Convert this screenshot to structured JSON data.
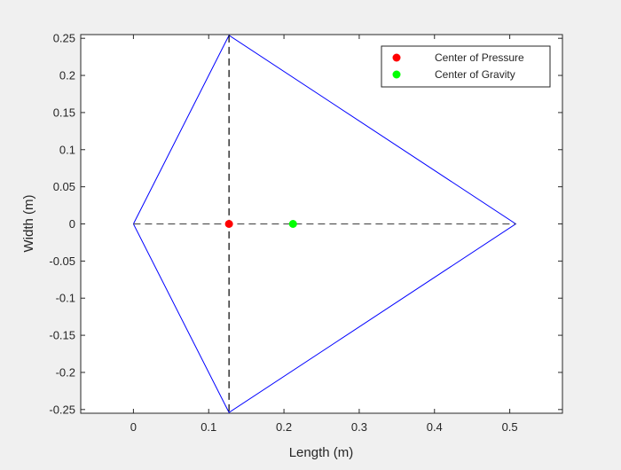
{
  "chart_data": {
    "type": "line",
    "title": "",
    "xlabel": "Length (m)",
    "ylabel": "Width (m)",
    "xlim": [
      -0.07,
      0.57
    ],
    "ylim": [
      -0.255,
      0.255
    ],
    "xticks": [
      0,
      0.1,
      0.2,
      0.3,
      0.4,
      0.5
    ],
    "xtick_labels": [
      "0",
      "0.1",
      "0.2",
      "0.3",
      "0.4",
      "0.5"
    ],
    "yticks": [
      -0.25,
      -0.2,
      -0.15,
      -0.1,
      -0.05,
      0,
      0.05,
      0.1,
      0.15,
      0.2,
      0.25
    ],
    "ytick_labels": [
      "-0.25",
      "-0.2",
      "-0.15",
      "-0.1",
      "-0.05",
      "0",
      "0.05",
      "0.1",
      "0.15",
      "0.2",
      "0.25"
    ],
    "grid": false,
    "legend_position": "top-right",
    "series": [
      {
        "kind": "polygon",
        "color": "#0000ff",
        "x": [
          0,
          0.127,
          0.508,
          0.127,
          0
        ],
        "y": [
          0,
          0.254,
          0,
          -0.254,
          0
        ]
      },
      {
        "kind": "dashed-line",
        "color": "#000000",
        "x": [
          0.127,
          0.127
        ],
        "y": [
          0.254,
          -0.254
        ]
      },
      {
        "kind": "dashed-line",
        "color": "#555555",
        "x": [
          0,
          0.508
        ],
        "y": [
          0,
          0
        ]
      },
      {
        "kind": "point",
        "name": "Center of Pressure",
        "color": "#ff0000",
        "x": [
          0.127
        ],
        "y": [
          0
        ]
      },
      {
        "kind": "point",
        "name": "Center of Gravity",
        "color": "#00ff00",
        "x": [
          0.212
        ],
        "y": [
          0
        ]
      }
    ]
  }
}
